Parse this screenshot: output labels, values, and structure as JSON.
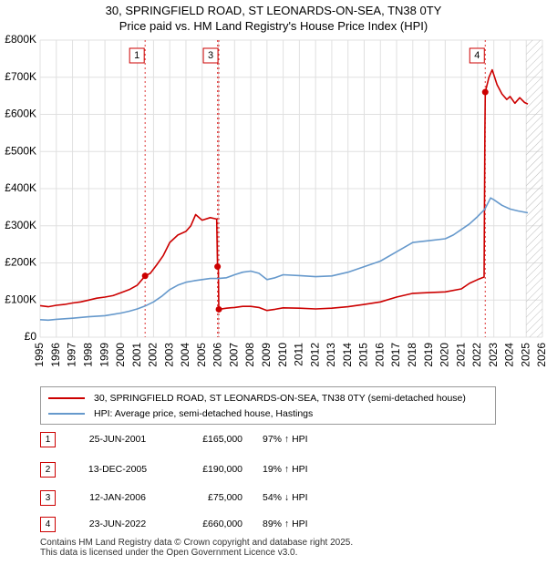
{
  "header": {
    "title_line1": "30, SPRINGFIELD ROAD, ST LEONARDS-ON-SEA, TN38 0TY",
    "title_line2": "Price paid vs. HM Land Registry's House Price Index (HPI)"
  },
  "chart_data": {
    "type": "line",
    "title": "30, SPRINGFIELD ROAD, ST LEONARDS-ON-SEA, TN38 0TY",
    "subtitle": "Price paid vs. HM Land Registry's House Price Index (HPI)",
    "xlim": [
      1995,
      2026
    ],
    "ylim": [
      0,
      800000
    ],
    "x_ticks": [
      1995,
      1996,
      1997,
      1998,
      1999,
      2000,
      2001,
      2002,
      2003,
      2004,
      2005,
      2006,
      2007,
      2008,
      2009,
      2010,
      2011,
      2012,
      2013,
      2014,
      2015,
      2016,
      2017,
      2018,
      2019,
      2020,
      2021,
      2022,
      2023,
      2024,
      2025,
      2026
    ],
    "y_ticks": [
      0,
      100000,
      200000,
      300000,
      400000,
      500000,
      600000,
      700000,
      800000
    ],
    "y_tick_labels": [
      "£0",
      "£100K",
      "£200K",
      "£300K",
      "£400K",
      "£500K",
      "£600K",
      "£700K",
      "£800K"
    ],
    "grid": true,
    "hatched_future_from": 2025.0,
    "colors": {
      "property": "#cc0000",
      "hpi": "#6699cc",
      "marker_line": "#dd3333",
      "grid": "#e0e0e0",
      "hatch": "#bbbbbb"
    },
    "series": [
      {
        "name": "30, SPRINGFIELD ROAD, ST LEONARDS-ON-SEA, TN38 0TY (semi-detached house)",
        "color": "#cc0000",
        "points": [
          [
            1995.0,
            85000
          ],
          [
            1995.5,
            82000
          ],
          [
            1996.0,
            86000
          ],
          [
            1996.5,
            88000
          ],
          [
            1997.0,
            92000
          ],
          [
            1997.5,
            95000
          ],
          [
            1998.0,
            100000
          ],
          [
            1998.5,
            105000
          ],
          [
            1999.0,
            108000
          ],
          [
            1999.5,
            112000
          ],
          [
            2000.0,
            120000
          ],
          [
            2000.5,
            128000
          ],
          [
            2001.0,
            140000
          ],
          [
            2001.48,
            165000
          ],
          [
            2001.8,
            172000
          ],
          [
            2002.2,
            195000
          ],
          [
            2002.6,
            220000
          ],
          [
            2003.0,
            255000
          ],
          [
            2003.5,
            275000
          ],
          [
            2004.0,
            285000
          ],
          [
            2004.3,
            300000
          ],
          [
            2004.6,
            330000
          ],
          [
            2005.0,
            315000
          ],
          [
            2005.5,
            322000
          ],
          [
            2005.9,
            318000
          ],
          [
            2005.95,
            190000
          ],
          [
            2006.0,
            185000
          ],
          [
            2006.03,
            75000
          ],
          [
            2006.5,
            78000
          ],
          [
            2007.0,
            80000
          ],
          [
            2007.5,
            83000
          ],
          [
            2008.0,
            83000
          ],
          [
            2008.5,
            80000
          ],
          [
            2009.0,
            72000
          ],
          [
            2009.5,
            75000
          ],
          [
            2010.0,
            79000
          ],
          [
            2011.0,
            78000
          ],
          [
            2012.0,
            76000
          ],
          [
            2013.0,
            78000
          ],
          [
            2014.0,
            82000
          ],
          [
            2015.0,
            88000
          ],
          [
            2016.0,
            95000
          ],
          [
            2017.0,
            108000
          ],
          [
            2018.0,
            118000
          ],
          [
            2019.0,
            120000
          ],
          [
            2020.0,
            122000
          ],
          [
            2021.0,
            130000
          ],
          [
            2021.5,
            145000
          ],
          [
            2022.0,
            155000
          ],
          [
            2022.4,
            162000
          ],
          [
            2022.45,
            560000
          ],
          [
            2022.47,
            660000
          ],
          [
            2022.7,
            700000
          ],
          [
            2022.9,
            720000
          ],
          [
            2023.2,
            680000
          ],
          [
            2023.5,
            655000
          ],
          [
            2023.8,
            640000
          ],
          [
            2024.0,
            648000
          ],
          [
            2024.3,
            630000
          ],
          [
            2024.6,
            645000
          ],
          [
            2024.9,
            632000
          ],
          [
            2025.1,
            628000
          ]
        ]
      },
      {
        "name": "HPI: Average price, semi-detached house, Hastings",
        "color": "#6699cc",
        "points": [
          [
            1995.0,
            47000
          ],
          [
            1995.5,
            46000
          ],
          [
            1996.0,
            48000
          ],
          [
            1997.0,
            51000
          ],
          [
            1998.0,
            55000
          ],
          [
            1999.0,
            58000
          ],
          [
            2000.0,
            65000
          ],
          [
            2000.5,
            70000
          ],
          [
            2001.0,
            76000
          ],
          [
            2001.48,
            84000
          ],
          [
            2002.0,
            95000
          ],
          [
            2002.5,
            110000
          ],
          [
            2003.0,
            128000
          ],
          [
            2003.5,
            140000
          ],
          [
            2004.0,
            148000
          ],
          [
            2004.5,
            152000
          ],
          [
            2005.0,
            155000
          ],
          [
            2005.5,
            158000
          ],
          [
            2006.0,
            158000
          ],
          [
            2006.5,
            160000
          ],
          [
            2007.0,
            168000
          ],
          [
            2007.5,
            175000
          ],
          [
            2008.0,
            178000
          ],
          [
            2008.5,
            172000
          ],
          [
            2009.0,
            155000
          ],
          [
            2009.5,
            160000
          ],
          [
            2010.0,
            168000
          ],
          [
            2011.0,
            166000
          ],
          [
            2012.0,
            163000
          ],
          [
            2013.0,
            165000
          ],
          [
            2014.0,
            175000
          ],
          [
            2015.0,
            190000
          ],
          [
            2016.0,
            205000
          ],
          [
            2017.0,
            230000
          ],
          [
            2018.0,
            255000
          ],
          [
            2019.0,
            260000
          ],
          [
            2020.0,
            265000
          ],
          [
            2020.5,
            275000
          ],
          [
            2021.0,
            290000
          ],
          [
            2021.5,
            305000
          ],
          [
            2022.0,
            325000
          ],
          [
            2022.45,
            345000
          ],
          [
            2022.8,
            375000
          ],
          [
            2023.0,
            370000
          ],
          [
            2023.5,
            355000
          ],
          [
            2024.0,
            345000
          ],
          [
            2024.5,
            340000
          ],
          [
            2025.1,
            335000
          ]
        ]
      }
    ],
    "sales": [
      {
        "label": "1",
        "x": 2001.48,
        "price": 165000
      },
      {
        "label": "2",
        "x": 2005.95,
        "price": 190000
      },
      {
        "label": "3",
        "x": 2006.03,
        "price": 75000
      },
      {
        "label": "4",
        "x": 2022.47,
        "price": 660000
      }
    ],
    "marker_boxes": [
      {
        "label": "1",
        "x": 2001.48
      },
      {
        "label": "3",
        "x": 2006.03
      },
      {
        "label": "4",
        "x": 2022.47
      }
    ]
  },
  "legend": {
    "property_label": "30, SPRINGFIELD ROAD, ST LEONARDS-ON-SEA, TN38 0TY (semi-detached house)",
    "hpi_label": "HPI: Average price, semi-detached house, Hastings"
  },
  "transactions": [
    {
      "num": "1",
      "date": "25-JUN-2001",
      "price": "£165,000",
      "hpi": "97% ↑ HPI"
    },
    {
      "num": "2",
      "date": "13-DEC-2005",
      "price": "£190,000",
      "hpi": "19% ↑ HPI"
    },
    {
      "num": "3",
      "date": "12-JAN-2006",
      "price": "£75,000",
      "hpi": "54% ↓ HPI"
    },
    {
      "num": "4",
      "date": "23-JUN-2022",
      "price": "£660,000",
      "hpi": "89% ↑ HPI"
    }
  ],
  "footer": {
    "line1": "Contains HM Land Registry data © Crown copyright and database right 2025.",
    "line2": "This data is licensed under the Open Government Licence v3.0."
  }
}
